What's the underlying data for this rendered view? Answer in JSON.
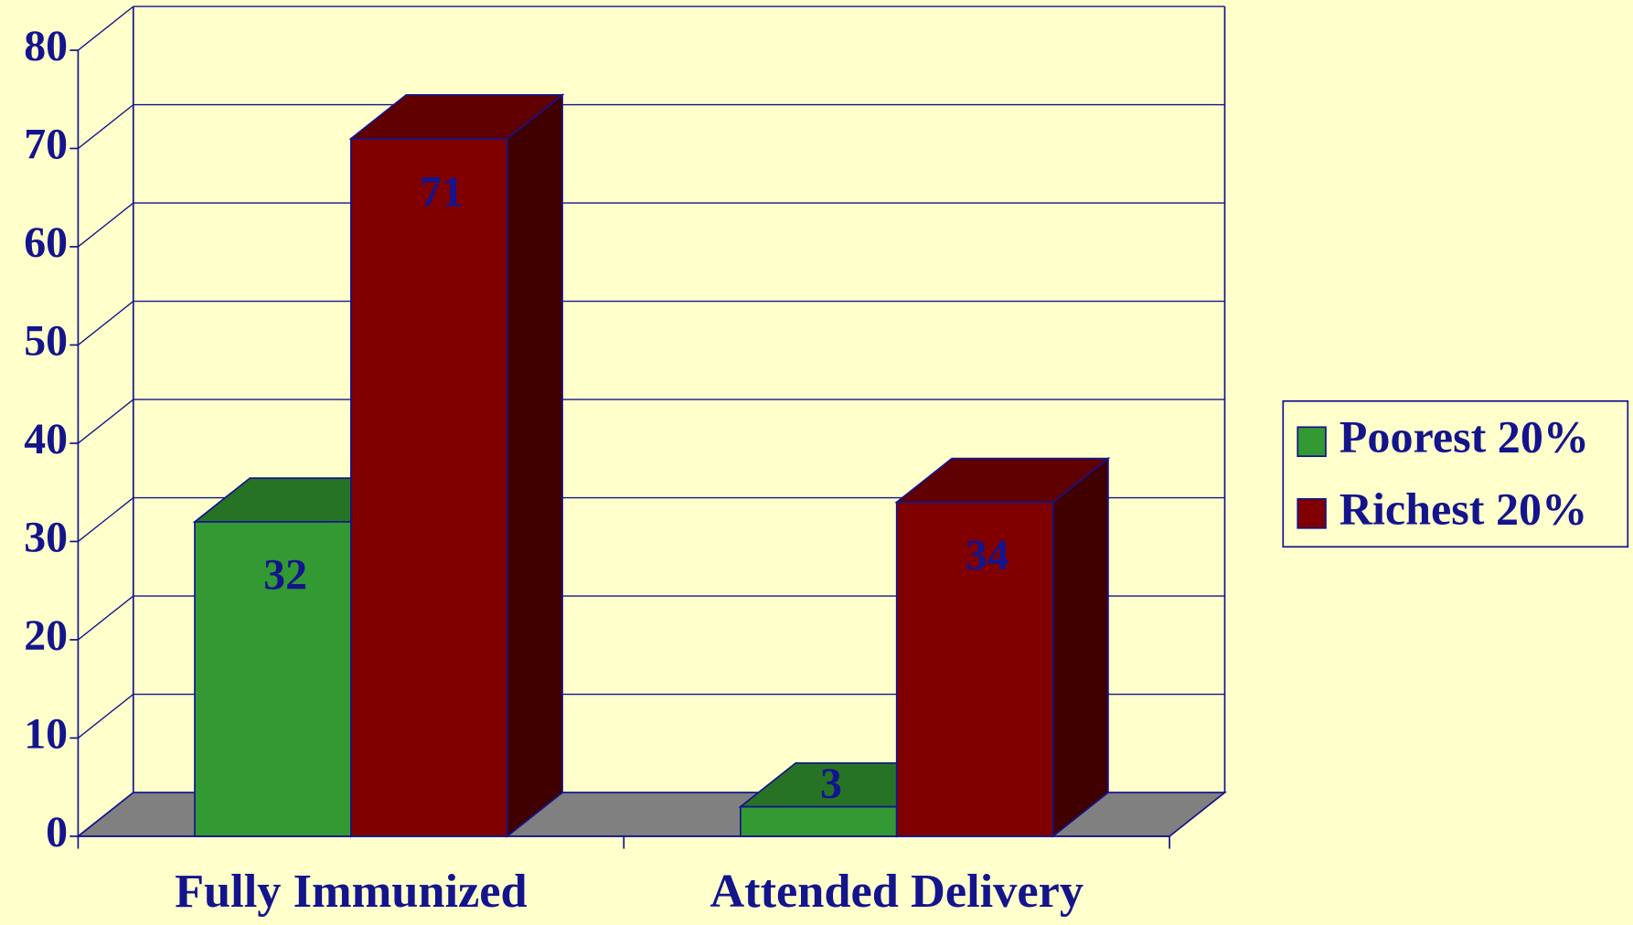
{
  "chart_data": {
    "type": "bar",
    "categories": [
      "Fully Immunized",
      "Attended Delivery"
    ],
    "series": [
      {
        "name": "Poorest 20%",
        "color": "#339933",
        "values": [
          32,
          3
        ]
      },
      {
        "name": "Richest 20%",
        "color": "#800000",
        "values": [
          71,
          34
        ]
      }
    ],
    "ylim": [
      0,
      80
    ],
    "yticks": [
      0,
      10,
      20,
      30,
      40,
      50,
      60,
      70,
      80
    ],
    "grid": true,
    "legend": "right",
    "three_d": true
  }
}
